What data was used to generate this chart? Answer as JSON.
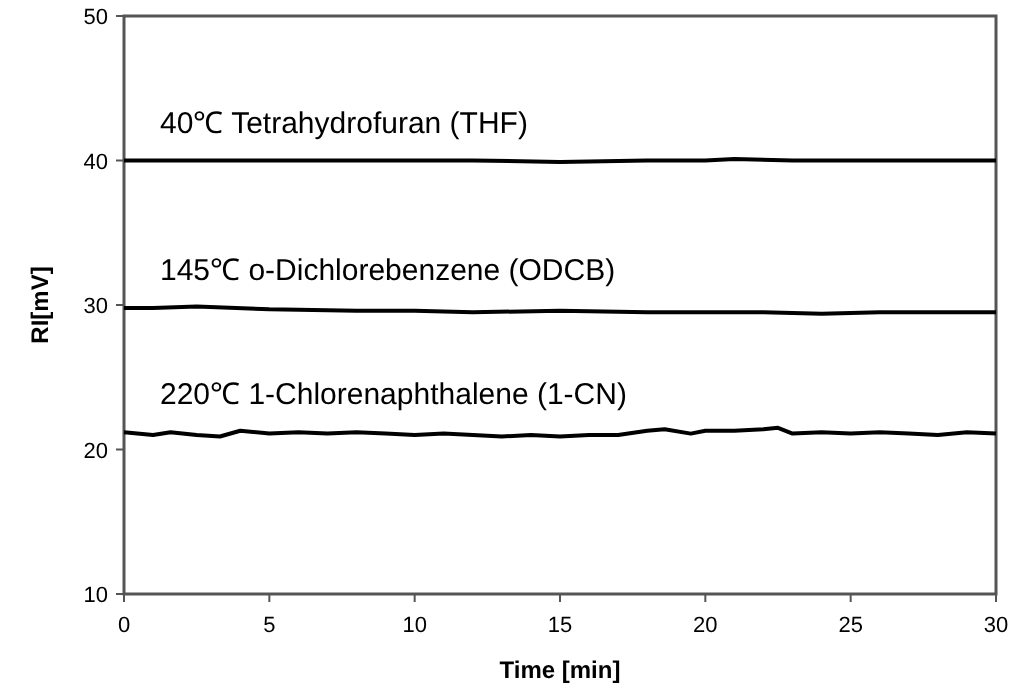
{
  "chart_data": {
    "type": "line",
    "xlabel": "Time [min]",
    "ylabel": "RI[mV]",
    "xlim": [
      0,
      30
    ],
    "ylim": [
      10,
      50
    ],
    "xticks": [
      0,
      5,
      10,
      15,
      20,
      25,
      30
    ],
    "yticks": [
      10,
      20,
      30,
      40,
      50
    ],
    "grid": false,
    "legend": false,
    "marker": "none",
    "line_style": "solid",
    "series": [
      {
        "name": "40℃  Tetrahydrofuran (THF)",
        "color": "#000000",
        "x": [
          0,
          3,
          6,
          9,
          12,
          15,
          18,
          20,
          21,
          23,
          25,
          27,
          30
        ],
        "values": [
          40.0,
          40.0,
          40.0,
          40.0,
          40.0,
          39.9,
          40.0,
          40.0,
          40.1,
          40.0,
          40.0,
          40.0,
          40.0
        ]
      },
      {
        "name": "145℃  o-Dichlorebenzene (ODCB)",
        "color": "#000000",
        "x": [
          0,
          1,
          2.5,
          5,
          8,
          10,
          12,
          15,
          18,
          20,
          22,
          24,
          26,
          28,
          30
        ],
        "values": [
          29.8,
          29.8,
          29.9,
          29.7,
          29.6,
          29.6,
          29.5,
          29.6,
          29.5,
          29.5,
          29.5,
          29.4,
          29.5,
          29.5,
          29.5
        ]
      },
      {
        "name": "220℃  1-Chlorenaphthalene (1-CN)",
        "color": "#000000",
        "x": [
          0,
          1,
          1.6,
          2.5,
          3.3,
          4,
          5,
          6,
          7,
          8,
          9,
          10,
          11,
          12,
          13,
          14,
          15,
          16,
          17,
          18,
          18.6,
          19.5,
          20,
          21,
          22,
          22.5,
          23,
          24,
          25,
          26,
          27,
          28,
          29,
          30
        ],
        "values": [
          21.2,
          21.0,
          21.2,
          21.0,
          20.9,
          21.3,
          21.1,
          21.2,
          21.1,
          21.2,
          21.1,
          21.0,
          21.1,
          21.0,
          20.9,
          21.0,
          20.9,
          21.0,
          21.0,
          21.3,
          21.4,
          21.1,
          21.3,
          21.3,
          21.4,
          21.5,
          21.1,
          21.2,
          21.1,
          21.2,
          21.1,
          21.0,
          21.2,
          21.1
        ]
      }
    ]
  }
}
